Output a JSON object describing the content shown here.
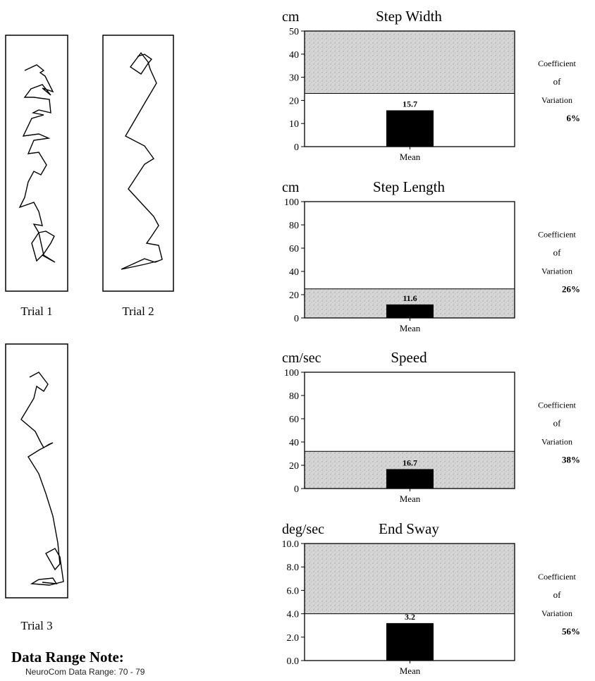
{
  "trials": [
    {
      "label": "Trial 1"
    },
    {
      "label": "Trial 2"
    },
    {
      "label": "Trial 3"
    }
  ],
  "cv_label": [
    "Coefficient",
    "of",
    "Variation"
  ],
  "note": {
    "title": "Data Range Note:",
    "line": "NeuroCom Data Range: 70 - 79"
  },
  "chart_data": [
    {
      "type": "bar",
      "title": "Step Width",
      "unit": "cm",
      "categories": [
        "Mean"
      ],
      "values": [
        15.7
      ],
      "value_label": "15.7",
      "ylim": [
        0,
        50
      ],
      "yticks": [
        "0",
        "10",
        "20",
        "30",
        "40",
        "50"
      ],
      "ytick_values": [
        0,
        10,
        20,
        30,
        40,
        50
      ],
      "normal_range": [
        23,
        50
      ],
      "cv": "6%"
    },
    {
      "type": "bar",
      "title": "Step Length",
      "unit": "cm",
      "categories": [
        "Mean"
      ],
      "values": [
        11.6
      ],
      "value_label": "11.6",
      "ylim": [
        0,
        100
      ],
      "yticks": [
        "0",
        "20",
        "40",
        "60",
        "80",
        "100"
      ],
      "ytick_values": [
        0,
        20,
        40,
        60,
        80,
        100
      ],
      "normal_range": [
        0,
        25
      ],
      "cv": "26%"
    },
    {
      "type": "bar",
      "title": "Speed",
      "unit": "cm/sec",
      "categories": [
        "Mean"
      ],
      "values": [
        16.7
      ],
      "value_label": "16.7",
      "ylim": [
        0,
        100
      ],
      "yticks": [
        "0",
        "20",
        "40",
        "60",
        "80",
        "100"
      ],
      "ytick_values": [
        0,
        20,
        40,
        60,
        80,
        100
      ],
      "normal_range": [
        0,
        32
      ],
      "cv": "38%"
    },
    {
      "type": "bar",
      "title": "End Sway",
      "unit": "deg/sec",
      "categories": [
        "Mean"
      ],
      "values": [
        3.2
      ],
      "value_label": "3.2",
      "ylim": [
        0,
        10
      ],
      "yticks": [
        "0.0",
        "2.0",
        "4.0",
        "6.0",
        "8.0",
        "10.0"
      ],
      "ytick_values": [
        0,
        2,
        4,
        6,
        8,
        10
      ],
      "normal_range": [
        4,
        10
      ],
      "cv": "56%"
    }
  ]
}
